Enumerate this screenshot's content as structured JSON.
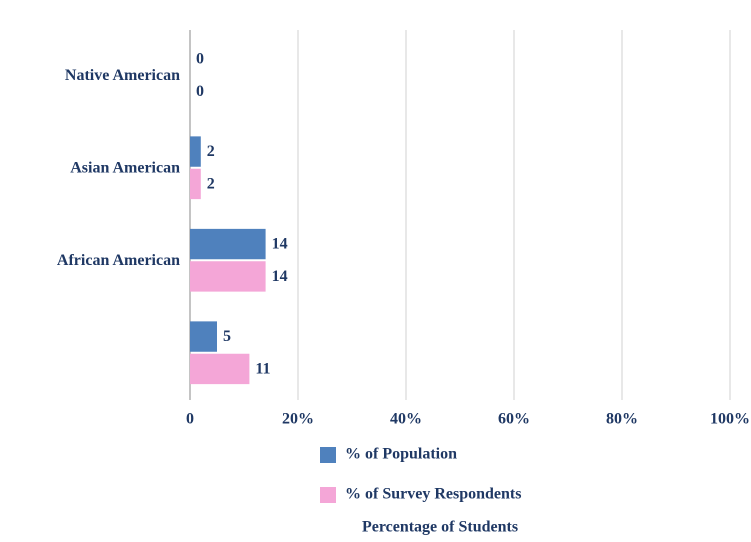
{
  "chart_data": {
    "type": "bar",
    "orientation": "horizontal",
    "categories": [
      "Native American",
      "Asian American",
      "African American",
      null
    ],
    "series": [
      {
        "name": "% of Population",
        "color": "#4f81bd",
        "values": [
          0,
          2,
          14,
          5
        ]
      },
      {
        "name": "% of Survey Respondents",
        "color": "#f4a6d7",
        "values": [
          0,
          2,
          14,
          11
        ]
      }
    ],
    "xlim": [
      0,
      100
    ],
    "xticks": [
      0,
      {
        "value": 20,
        "label": "20%"
      },
      {
        "value": 40,
        "label": "40%"
      },
      {
        "value": 60,
        "label": "60%"
      },
      {
        "value": 80,
        "label": "80%"
      },
      {
        "value": 100,
        "label": "100%"
      }
    ],
    "xlabel": "Percentage of Students",
    "grid": true,
    "legend": "bottom"
  }
}
